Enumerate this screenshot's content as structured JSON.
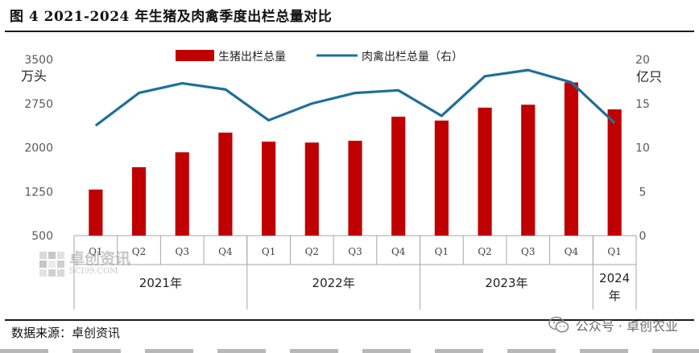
{
  "header": {
    "title": "图 4 2021-2024 年生猪及肉禽季度出栏总量对比"
  },
  "footer": {
    "source": "数据来源：卓创资讯",
    "wechat": "公众号 · 卓创农业"
  },
  "watermark": {
    "brand": "卓创资讯",
    "domain": "SCI99.COM",
    "logo_icon": "sci99-grid-logo-icon"
  },
  "colors": {
    "bar": "#c00000",
    "line": "#1f6f99",
    "axis": "#a6a6a6"
  },
  "chart_data": {
    "type": "bar",
    "categories": [
      "Q1",
      "Q2",
      "Q3",
      "Q4",
      "Q1",
      "Q2",
      "Q3",
      "Q4",
      "Q1",
      "Q2",
      "Q3",
      "Q4",
      "Q1"
    ],
    "groups": [
      {
        "label": "2021年",
        "count": 4
      },
      {
        "label": "2022年",
        "count": 4
      },
      {
        "label": "2023年",
        "count": 4
      },
      {
        "label": "2024年",
        "count": 1
      }
    ],
    "series": [
      {
        "name": "生猪出栏总量",
        "type": "bar",
        "axis": "left",
        "values": [
          1285,
          1665,
          1920,
          2255,
          2100,
          2085,
          2115,
          2525,
          2460,
          2680,
          2730,
          3110,
          2650
        ]
      },
      {
        "name": "肉禽出栏总量（右）",
        "type": "line",
        "axis": "right",
        "values": [
          12.5,
          16.2,
          17.3,
          16.6,
          13.1,
          15.0,
          16.2,
          16.5,
          13.6,
          18.1,
          18.8,
          17.4,
          12.8
        ]
      }
    ],
    "left_axis": {
      "unit": "万头",
      "ylim": [
        500,
        3500
      ],
      "ticks": [
        500,
        1250,
        2000,
        2750,
        3500
      ]
    },
    "right_axis": {
      "unit": "亿只",
      "ylim": [
        0,
        20
      ],
      "ticks": [
        0,
        5,
        10,
        15,
        20
      ]
    },
    "legend": "top-center",
    "grid": false
  }
}
